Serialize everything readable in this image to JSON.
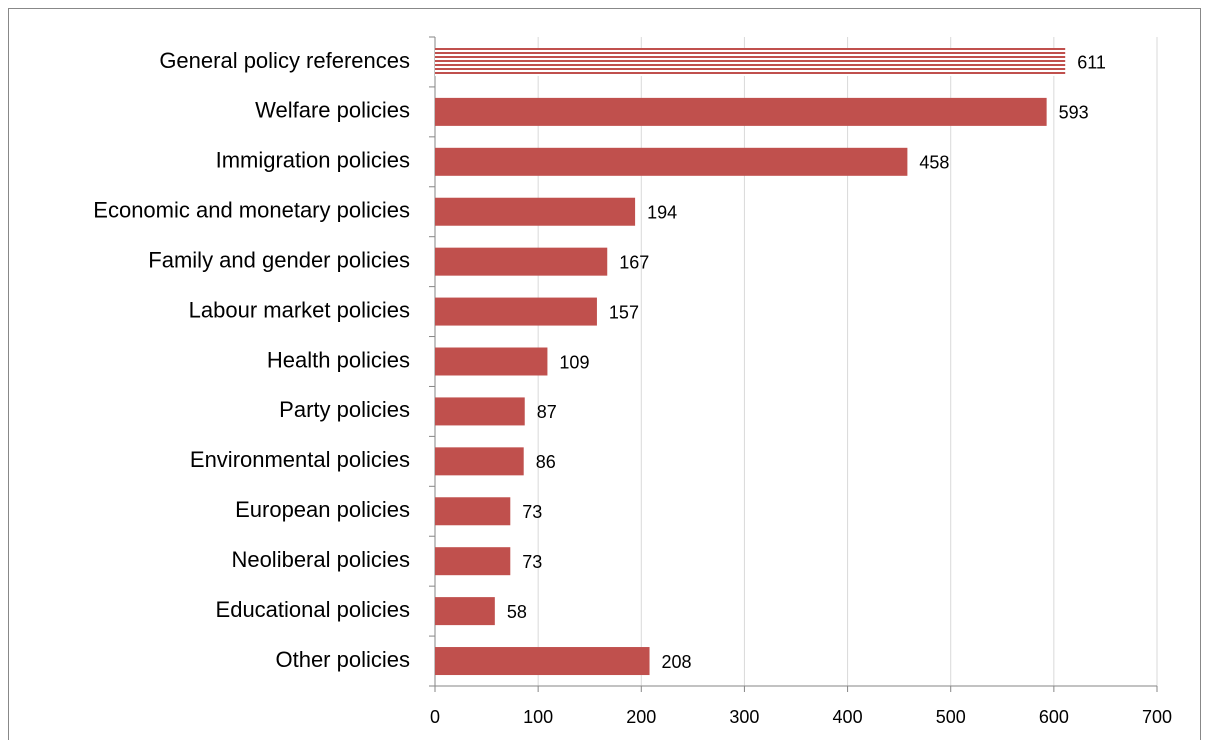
{
  "chart_data": {
    "type": "hbar",
    "categories": [
      "General policy references",
      "Welfare policies",
      "Immigration policies",
      "Economic and monetary policies",
      "Family and gender policies",
      "Labour market policies",
      "Health policies",
      "Party policies",
      "Environmental policies",
      "European policies",
      "Neoliberal policies",
      "Educational policies",
      "Other policies"
    ],
    "values": [
      611,
      593,
      458,
      194,
      167,
      157,
      109,
      87,
      86,
      73,
      73,
      58,
      208
    ],
    "hatched": [
      true,
      false,
      false,
      false,
      false,
      false,
      false,
      false,
      false,
      false,
      false,
      false,
      false
    ],
    "color": "#c0504d",
    "xlim": [
      0,
      700
    ],
    "xticks": [
      0,
      100,
      200,
      300,
      400,
      500,
      600,
      700
    ],
    "grid": true
  }
}
